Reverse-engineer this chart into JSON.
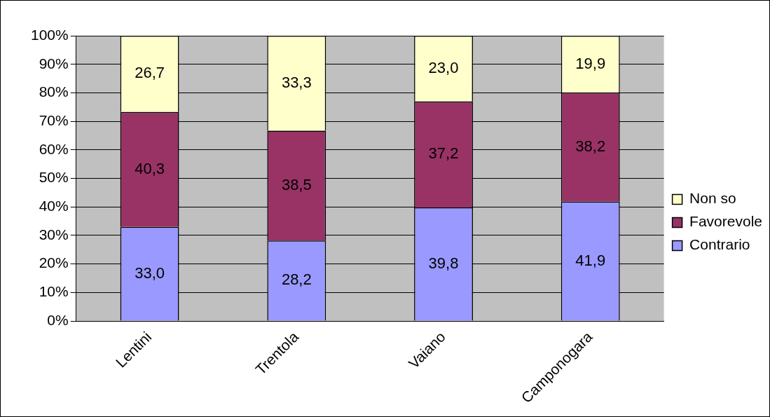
{
  "chart_data": {
    "type": "bar",
    "stacked": true,
    "categories": [
      "Lentini",
      "Trentola",
      "Vaiano",
      "Camponogara"
    ],
    "series": [
      {
        "name": "Contrario",
        "color": "#9999ff",
        "values": [
          33.0,
          28.2,
          39.8,
          41.9
        ],
        "value_labels": [
          "33,0",
          "28,2",
          "39,8",
          "41,9"
        ]
      },
      {
        "name": "Favorevole",
        "color": "#993366",
        "values": [
          40.3,
          38.5,
          37.2,
          38.2
        ],
        "value_labels": [
          "40,3",
          "38,5",
          "37,2",
          "38,2"
        ]
      },
      {
        "name": "Non so",
        "color": "#ffffcc",
        "values": [
          26.7,
          33.3,
          23.0,
          19.9
        ],
        "value_labels": [
          "26,7",
          "33,3",
          "23,0",
          "19,9"
        ]
      }
    ],
    "ylim": [
      0,
      100
    ],
    "yticks": [
      {
        "value": 0,
        "label": "0%"
      },
      {
        "value": 10,
        "label": "10%"
      },
      {
        "value": 20,
        "label": "20%"
      },
      {
        "value": 30,
        "label": "30%"
      },
      {
        "value": 40,
        "label": "40%"
      },
      {
        "value": 50,
        "label": "50%"
      },
      {
        "value": 60,
        "label": "60%"
      },
      {
        "value": 70,
        "label": "70%"
      },
      {
        "value": 80,
        "label": "80%"
      },
      {
        "value": 90,
        "label": "90%"
      },
      {
        "value": 100,
        "label": "100%"
      }
    ],
    "grid": "y",
    "legend": "right"
  }
}
